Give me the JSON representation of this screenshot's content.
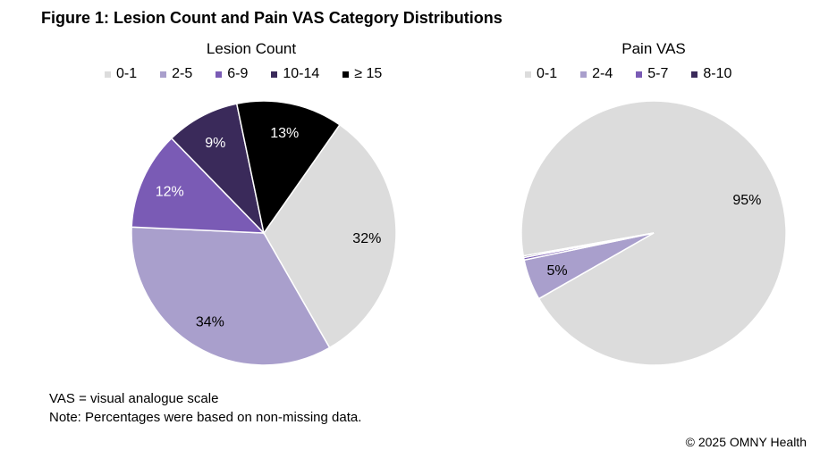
{
  "figure_title": "Figure 1: Lesion Count and Pain VAS Category Distributions",
  "chart_data": [
    {
      "type": "pie",
      "title": "Lesion Count",
      "legend_position": "top",
      "categories": [
        "0-1",
        "2-5",
        "6-9",
        "10-14",
        "≥ 15"
      ],
      "values": [
        32,
        34,
        12,
        9,
        13
      ],
      "labels": [
        "32%",
        "34%",
        "12%",
        "9%",
        "13%"
      ],
      "colors": [
        "#dcdcdc",
        "#a99fcc",
        "#7a5bb5",
        "#3a2a5a",
        "#000000"
      ],
      "label_colors": [
        "#000000",
        "#000000",
        "#ffffff",
        "#ffffff",
        "#ffffff"
      ],
      "start_angle_deg": -55
    },
    {
      "type": "pie",
      "title": "Pain VAS",
      "legend_position": "top",
      "categories": [
        "0-1",
        "2-4",
        "5-7",
        "8-10"
      ],
      "values": [
        94.5,
        5,
        0.3,
        0.2
      ],
      "labels": [
        "95%",
        "5%",
        "",
        ""
      ],
      "colors": [
        "#dcdcdc",
        "#a99fcc",
        "#7a5bb5",
        "#3a2a5a"
      ],
      "label_colors": [
        "#000000",
        "#000000",
        "#ffffff",
        "#ffffff"
      ],
      "start_angle_deg": 170
    }
  ],
  "notes": [
    "VAS = visual analogue scale",
    "Note: Percentages were based on non-missing data."
  ],
  "copyright": "© 2025 OMNY Health"
}
